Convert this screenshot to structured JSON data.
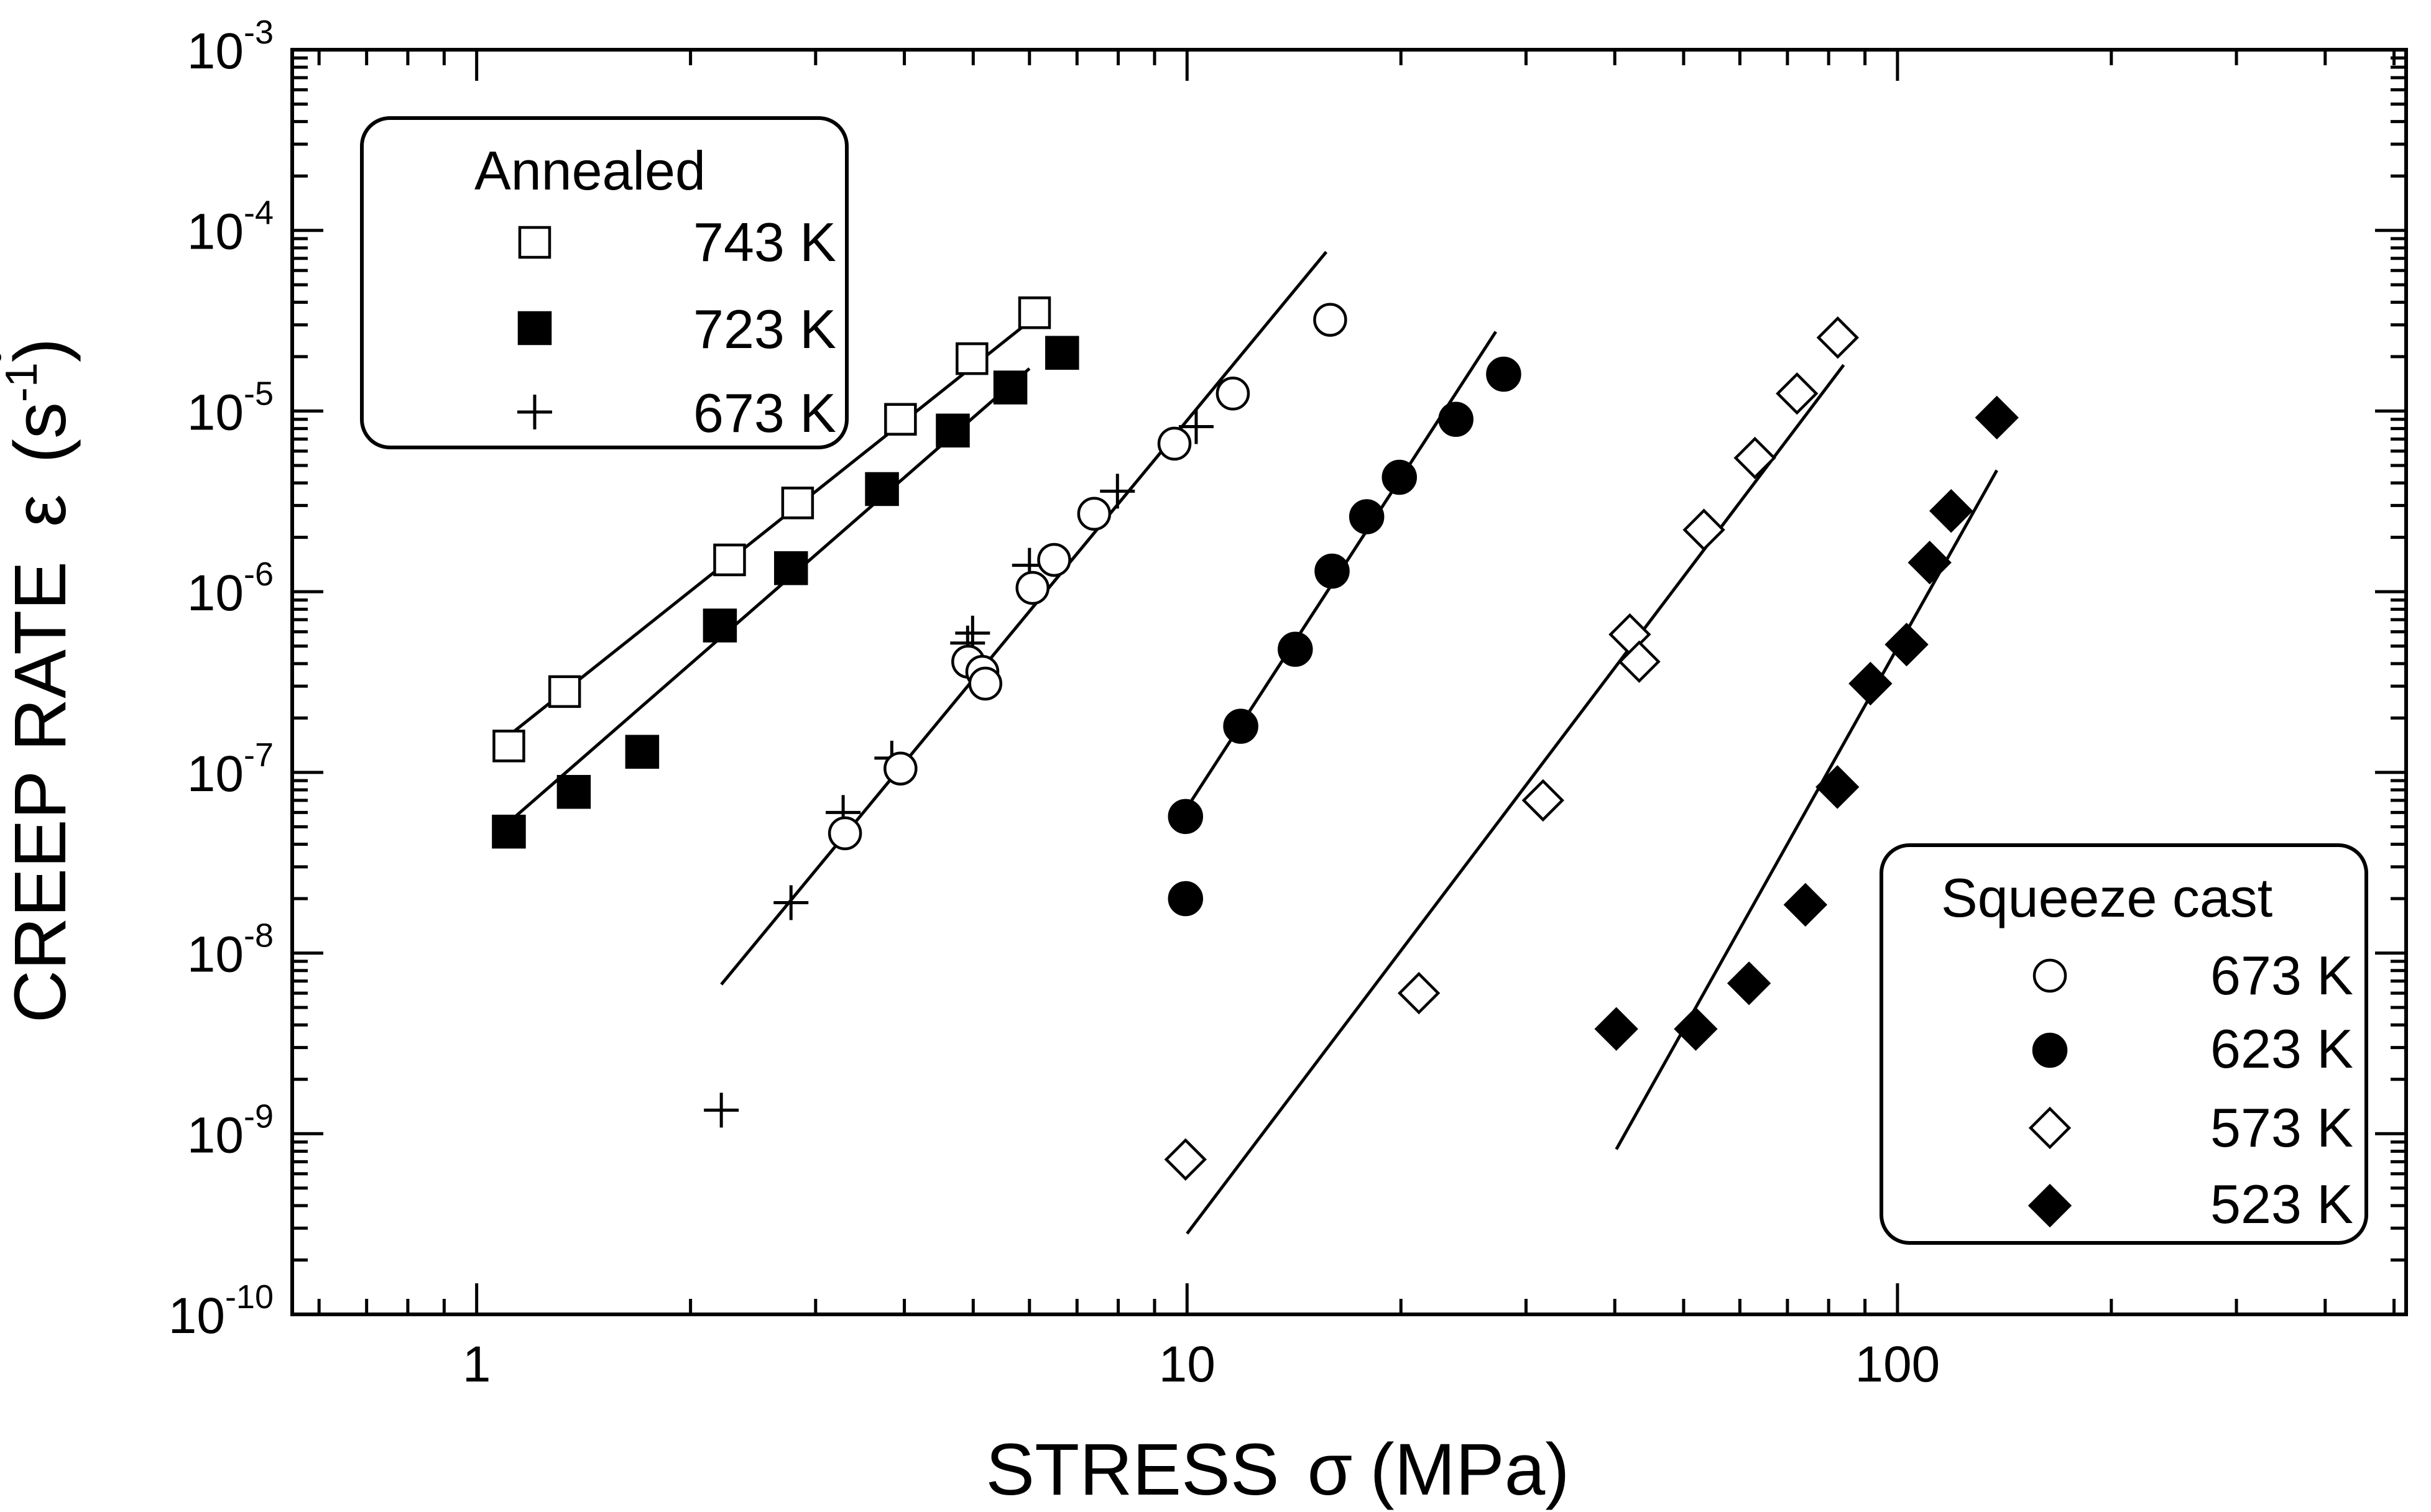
{
  "chart_data": {
    "type": "scatter",
    "xlabel_main": "STRESS",
    "xlabel_symbol": "σ",
    "xlabel_unit": "(MPa)",
    "ylabel_main": "CREEP RATE",
    "ylabel_symbol": "ε",
    "ylabel_unit_pre": "(s",
    "ylabel_unit_exp": "-1",
    "ylabel_unit_post": ")",
    "x_scale": "log",
    "y_scale": "log",
    "xlim": [
      0.55,
      520
    ],
    "ylim": [
      1e-10,
      0.001
    ],
    "x_ticks": [
      {
        "value": 1,
        "label": "1"
      },
      {
        "value": 10,
        "label": "10"
      },
      {
        "value": 100,
        "label": "100"
      }
    ],
    "y_ticks": [
      {
        "value": 1e-10,
        "base": "10",
        "exp": "-10"
      },
      {
        "value": 1e-09,
        "base": "10",
        "exp": "-9"
      },
      {
        "value": 1e-08,
        "base": "10",
        "exp": "-8"
      },
      {
        "value": 1e-07,
        "base": "10",
        "exp": "-7"
      },
      {
        "value": 1e-06,
        "base": "10",
        "exp": "-6"
      },
      {
        "value": 1e-05,
        "base": "10",
        "exp": "-5"
      },
      {
        "value": 0.0001,
        "base": "10",
        "exp": "-4"
      },
      {
        "value": 0.001,
        "base": "10",
        "exp": "-3"
      }
    ],
    "grid": false,
    "legends": [
      {
        "title": "Annealed",
        "placement": "top-left",
        "entries": [
          "743 K",
          "723 K",
          "673 K"
        ]
      },
      {
        "title": "Squeeze cast",
        "placement": "bottom-right",
        "entries": [
          "673 K",
          "623 K",
          "573 K",
          "523 K"
        ]
      }
    ],
    "series": [
      {
        "name": "743 K",
        "group": "Annealed",
        "marker": "square-open",
        "points": [
          [
            1.11,
            1.4e-07
          ],
          [
            1.33,
            2.8e-07
          ],
          [
            2.27,
            1.5e-06
          ],
          [
            2.83,
            3.1e-06
          ],
          [
            3.95,
            9e-06
          ],
          [
            4.98,
            1.95e-05
          ],
          [
            6.1,
            3.5e-05
          ]
        ],
        "fit": [
          [
            1.11,
            1.6e-07
          ],
          [
            6.1,
            3.3e-05
          ]
        ]
      },
      {
        "name": "723 K",
        "group": "Annealed",
        "marker": "square-filled",
        "points": [
          [
            1.11,
            4.7e-08
          ],
          [
            1.37,
            7.8e-08
          ],
          [
            1.71,
            1.3e-07
          ],
          [
            2.2,
            6.5e-07
          ],
          [
            2.77,
            1.35e-06
          ],
          [
            3.72,
            3.7e-06
          ],
          [
            4.68,
            7.8e-06
          ],
          [
            5.64,
            1.35e-05
          ],
          [
            6.67,
            2.1e-05
          ]
        ],
        "fit": [
          [
            1.11,
            5.3e-08
          ],
          [
            6.0,
            1.72e-05
          ]
        ]
      },
      {
        "name": "673 K",
        "group": "Annealed",
        "marker": "plus",
        "points": [
          [
            2.21,
            1.35e-09
          ],
          [
            2.77,
            1.9e-08
          ],
          [
            3.28,
            6e-08
          ],
          [
            3.84,
            1.2e-07
          ],
          [
            4.91,
            5.2e-07
          ],
          [
            4.99,
            5.9e-07
          ],
          [
            6.0,
            1.4e-06
          ],
          [
            7.98,
            3.6e-06
          ],
          [
            10.3,
            8.2e-06
          ]
        ]
      },
      {
        "name": "673 K",
        "group": "Squeeze cast",
        "marker": "circle-open",
        "points": [
          [
            3.3,
            4.6e-08
          ],
          [
            3.95,
            1.05e-07
          ],
          [
            4.92,
            4.1e-07
          ],
          [
            5.15,
            3.6e-07
          ],
          [
            5.2,
            3.1e-07
          ],
          [
            6.06,
            1.05e-06
          ],
          [
            6.5,
            1.5e-06
          ],
          [
            7.4,
            2.7e-06
          ],
          [
            9.6,
            6.6e-06
          ],
          [
            11.6,
            1.25e-05
          ],
          [
            15.9,
            3.2e-05
          ]
        ],
        "fit": [
          [
            2.21,
            6.7e-09
          ],
          [
            15.7,
            7.6e-05
          ]
        ]
      },
      {
        "name": "623 K",
        "group": "Squeeze cast",
        "marker": "circle-filled",
        "points": [
          [
            9.95,
            2e-08
          ],
          [
            9.95,
            5.7e-08
          ],
          [
            11.9,
            1.8e-07
          ],
          [
            14.2,
            4.8e-07
          ],
          [
            16.0,
            1.3e-06
          ],
          [
            17.9,
            2.6e-06
          ],
          [
            19.9,
            4.3e-06
          ],
          [
            23.9,
            9e-06
          ],
          [
            27.9,
            1.6e-05
          ]
        ],
        "fit": [
          [
            9.95,
            6.2e-08
          ],
          [
            27.2,
            2.75e-05
          ]
        ]
      },
      {
        "name": "573 K",
        "group": "Squeeze cast",
        "marker": "diamond-open",
        "points": [
          [
            9.95,
            7.2e-10
          ],
          [
            21.2,
            6e-09
          ],
          [
            31.7,
            7e-08
          ],
          [
            42.0,
            5.8e-07
          ],
          [
            43.3,
            4.1e-07
          ],
          [
            53.4,
            2.2e-06
          ],
          [
            63.0,
            5.5e-06
          ],
          [
            72.2,
            1.25e-05
          ],
          [
            82.4,
            2.55e-05
          ]
        ],
        "fit": [
          [
            10.0,
            2.8e-10
          ],
          [
            84.0,
            1.8e-05
          ]
        ]
      },
      {
        "name": "523 K",
        "group": "Squeeze cast",
        "marker": "diamond-filled",
        "points": [
          [
            40.2,
            3.8e-09
          ],
          [
            52.0,
            3.8e-09
          ],
          [
            61.8,
            6.8e-09
          ],
          [
            74.2,
            1.85e-08
          ],
          [
            82.3,
            8.3e-08
          ],
          [
            91.6,
            3.1e-07
          ],
          [
            103.0,
            5.1e-07
          ],
          [
            111.0,
            1.45e-06
          ],
          [
            119.0,
            2.8e-06
          ],
          [
            138.0,
            9.2e-06
          ]
        ],
        "fit": [
          [
            40.2,
            8.2e-10
          ],
          [
            138.0,
            4.7e-06
          ]
        ]
      }
    ]
  }
}
